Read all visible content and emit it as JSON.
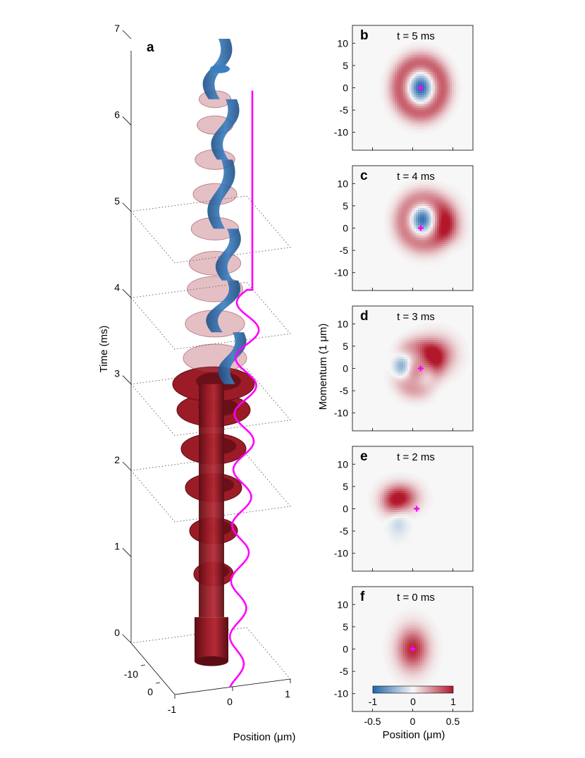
{
  "chart_data": [
    {
      "type": "3d-surface",
      "panel_label": "a",
      "xlabel": "Position (μm)",
      "ylabel": "",
      "zlabel": "Time (ms)",
      "x_ticks": [
        "-1",
        "0",
        "1"
      ],
      "y_ticks": [
        "-10",
        "0"
      ],
      "z_ticks": [
        "0",
        "1",
        "2",
        "3",
        "4",
        "5",
        "6",
        "7"
      ],
      "zlim": [
        0,
        7
      ],
      "xlim": [
        -1,
        1
      ],
      "slice_planes_ms": [
        0,
        2,
        3,
        4,
        5
      ],
      "trajectory_color": "#ff00ff",
      "surface_colors": {
        "positive": "#9b1c27",
        "negative": "#2f6fb0"
      }
    },
    {
      "type": "heatmap",
      "panel_label": "b",
      "title": "t = 5 ms",
      "centroid": [
        0.1,
        0
      ],
      "blobs": [
        {
          "x": 0.1,
          "p": 0,
          "sx": 0.09,
          "sp": 2.2,
          "v": -1.0
        },
        {
          "ring_x": 0.1,
          "ring_p": 0,
          "rx": 0.27,
          "rp": 5.5,
          "w": 0.32,
          "v": 0.7
        }
      ]
    },
    {
      "type": "heatmap",
      "panel_label": "c",
      "title": "t = 4 ms",
      "centroid": [
        0.1,
        0
      ],
      "blobs": [
        {
          "x": 0.12,
          "p": 2.0,
          "sx": 0.09,
          "sp": 2.0,
          "v": -0.95
        },
        {
          "ring_x": 0.14,
          "ring_p": 1.5,
          "rx": 0.26,
          "rp": 5.0,
          "w": 0.35,
          "v": 0.55
        },
        {
          "x": 0.42,
          "p": 0.5,
          "sx": 0.12,
          "sp": 3.3,
          "v": 0.6
        },
        {
          "x": 0.45,
          "p": -4.0,
          "sx": 0.1,
          "sp": 2.0,
          "v": -0.12
        }
      ]
    },
    {
      "type": "heatmap",
      "panel_label": "d",
      "title": "t = 3 ms",
      "centroid": [
        0.1,
        0
      ],
      "blobs": [
        {
          "x": -0.15,
          "p": 0.5,
          "sx": 0.08,
          "sp": 2.0,
          "v": -0.85
        },
        {
          "x": 0.28,
          "p": 3.0,
          "sx": 0.15,
          "sp": 2.6,
          "v": 0.9
        },
        {
          "x": 0.22,
          "p": -2.5,
          "sx": 0.1,
          "sp": 2.0,
          "v": -0.25
        },
        {
          "x": 0.02,
          "p": -1.0,
          "sx": 0.1,
          "sp": 2.0,
          "v": 0.45
        },
        {
          "ring_x": 0.05,
          "ring_p": 0,
          "rx": 0.25,
          "rp": 5.0,
          "w": 0.3,
          "v": 0.35
        }
      ]
    },
    {
      "type": "heatmap",
      "panel_label": "e",
      "title": "t = 2 ms",
      "centroid": [
        0.05,
        0
      ],
      "blobs": [
        {
          "x": -0.15,
          "p": 2.5,
          "sx": 0.14,
          "sp": 2.0,
          "v": 0.95
        },
        {
          "x": -0.25,
          "p": 1.0,
          "sx": 0.1,
          "sp": 2.0,
          "v": 0.35
        },
        {
          "x": -0.18,
          "p": -3.0,
          "sx": 0.08,
          "sp": 2.2,
          "v": -0.25
        }
      ]
    },
    {
      "type": "heatmap",
      "panel_label": "f",
      "title": "t = 0 ms",
      "centroid": [
        0,
        0
      ],
      "blobs": [
        {
          "x": 0,
          "p": 0,
          "sx": 0.13,
          "sp": 3.2,
          "v": 0.95
        }
      ]
    }
  ],
  "heatmap_axes": {
    "ylabel": "Momentum (1 μm)",
    "xlabel": "Position (μm)",
    "x_ticks": [
      "-0.5",
      "0",
      "0.5"
    ],
    "y_ticks": [
      "10",
      "5",
      "0",
      "-5",
      "-10"
    ],
    "xlim": [
      -0.75,
      0.75
    ],
    "ylim": [
      -14,
      14
    ]
  },
  "colorbar": {
    "ticks": [
      "-1",
      "0",
      "1"
    ],
    "min": -1,
    "max": 1,
    "colormap": [
      "#2166ac",
      "#f7f7f7",
      "#b2182b"
    ]
  }
}
